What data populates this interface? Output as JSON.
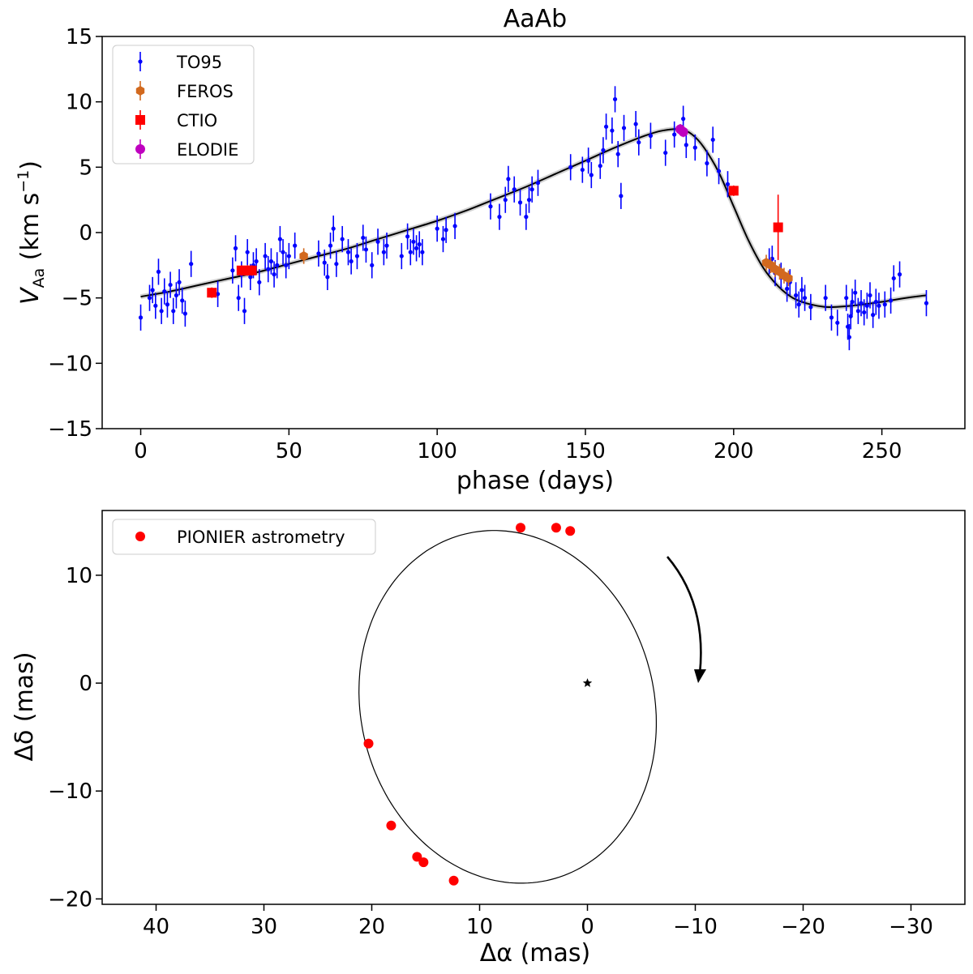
{
  "chart_data": [
    {
      "type": "scatter",
      "title": "AaAb",
      "xlabel": "phase (days)",
      "ylabel_main": "V",
      "ylabel_sub": "Aa",
      "ylabel_unit_open": " (km s",
      "ylabel_unit_sup": "−1",
      "ylabel_unit_close": ")",
      "xlim": [
        -13,
        278
      ],
      "ylim": [
        -15,
        15
      ],
      "xticks": [
        0,
        50,
        100,
        150,
        200,
        250
      ],
      "xtick_labels": [
        "0",
        "50",
        "100",
        "150",
        "200",
        "250"
      ],
      "yticks": [
        -15,
        -10,
        -5,
        0,
        5,
        10,
        15
      ],
      "ytick_labels": [
        "−15",
        "−10",
        "−5",
        "0",
        "5",
        "10",
        "15"
      ],
      "legend_position": "top-left",
      "model_curve": {
        "name": "orbit fit",
        "x": [
          0,
          10,
          20,
          30,
          40,
          50,
          60,
          70,
          80,
          90,
          100,
          110,
          120,
          130,
          140,
          150,
          160,
          170,
          176,
          182,
          186,
          190,
          195,
          200,
          205,
          210,
          215,
          220,
          226,
          232,
          240,
          250,
          258,
          265
        ],
        "y": [
          -4.9,
          -4.5,
          -4.0,
          -3.5,
          -3.0,
          -2.4,
          -1.8,
          -1.2,
          -0.5,
          0.2,
          0.9,
          1.7,
          2.6,
          3.5,
          4.5,
          5.5,
          6.5,
          7.4,
          7.8,
          7.9,
          7.5,
          6.5,
          4.6,
          2.0,
          -0.6,
          -2.7,
          -4.1,
          -5.0,
          -5.5,
          -5.7,
          -5.6,
          -5.3,
          -5.0,
          -4.8
        ]
      },
      "series": [
        {
          "name": "TO95",
          "color": "#0000ff",
          "marker": "small-dot",
          "points": [
            [
              0,
              -6.5
            ],
            [
              3,
              -5.0
            ],
            [
              4,
              -4.4
            ],
            [
              5,
              -5.6
            ],
            [
              6,
              -3.0
            ],
            [
              7,
              -6.0
            ],
            [
              8,
              -4.5
            ],
            [
              9,
              -5.5
            ],
            [
              10,
              -4.0
            ],
            [
              11,
              -6.0
            ],
            [
              12,
              -4.8
            ],
            [
              13,
              -3.8
            ],
            [
              14,
              -5.2
            ],
            [
              15,
              -6.2
            ],
            [
              17,
              -2.4
            ],
            [
              26,
              -4.7
            ],
            [
              31,
              -2.9
            ],
            [
              32,
              -1.2
            ],
            [
              33,
              -5.0
            ],
            [
              34,
              -3.2
            ],
            [
              35,
              -6.0
            ],
            [
              36,
              -1.5
            ],
            [
              37,
              -3.4
            ],
            [
              38,
              -2.5
            ],
            [
              39,
              -2.2
            ],
            [
              40,
              -3.8
            ],
            [
              42,
              -1.8
            ],
            [
              43,
              -2.8
            ],
            [
              44,
              -2.2
            ],
            [
              45,
              -3.2
            ],
            [
              46,
              -2.5
            ],
            [
              47,
              -0.5
            ],
            [
              48,
              -1.5
            ],
            [
              49,
              -2.5
            ],
            [
              50,
              -1.8
            ],
            [
              52,
              -1.0
            ],
            [
              60,
              -1.6
            ],
            [
              62,
              -2.3
            ],
            [
              63,
              -3.4
            ],
            [
              64,
              -1.0
            ],
            [
              65,
              0.3
            ],
            [
              66,
              -2.4
            ],
            [
              68,
              -0.5
            ],
            [
              70,
              -1.5
            ],
            [
              71,
              -2.2
            ],
            [
              73,
              -1.8
            ],
            [
              75,
              -0.4
            ],
            [
              76,
              -1.3
            ],
            [
              78,
              -2.5
            ],
            [
              80,
              -0.7
            ],
            [
              82,
              -1.5
            ],
            [
              83,
              -1.0
            ],
            [
              88,
              -1.8
            ],
            [
              90,
              -0.3
            ],
            [
              91,
              -1.5
            ],
            [
              92,
              -0.7
            ],
            [
              93,
              -1.2
            ],
            [
              94,
              -0.9
            ],
            [
              95,
              -1.5
            ],
            [
              100,
              0.3
            ],
            [
              102,
              -0.5
            ],
            [
              103,
              0.2
            ],
            [
              106,
              0.5
            ],
            [
              118,
              2.0
            ],
            [
              121,
              1.2
            ],
            [
              123,
              2.5
            ],
            [
              124,
              4.1
            ],
            [
              126,
              3.3
            ],
            [
              128,
              2.3
            ],
            [
              130,
              1.2
            ],
            [
              131,
              2.5
            ],
            [
              132,
              3.3
            ],
            [
              134,
              3.8
            ],
            [
              145,
              5.0
            ],
            [
              149,
              4.8
            ],
            [
              151,
              5.5
            ],
            [
              152,
              4.4
            ],
            [
              155,
              5.1
            ],
            [
              156,
              6.3
            ],
            [
              157,
              8.1
            ],
            [
              159,
              7.8
            ],
            [
              160,
              10.2
            ],
            [
              161,
              6.0
            ],
            [
              162,
              2.8
            ],
            [
              163,
              8.0
            ],
            [
              167,
              8.3
            ],
            [
              168,
              6.9
            ],
            [
              172,
              7.4
            ],
            [
              177,
              6.1
            ],
            [
              180,
              7.5
            ],
            [
              183,
              8.7
            ],
            [
              184,
              6.7
            ],
            [
              187,
              6.5
            ],
            [
              191,
              5.3
            ],
            [
              193,
              7.1
            ],
            [
              195,
              4.7
            ],
            [
              198,
              3.7
            ],
            [
              212,
              -2.2
            ],
            [
              213,
              -2.0
            ],
            [
              214,
              -3.1
            ],
            [
              216,
              -3.3
            ],
            [
              218,
              -4.3
            ],
            [
              219,
              -3.8
            ],
            [
              221,
              -4.8
            ],
            [
              222,
              -5.5
            ],
            [
              223,
              -4.4
            ],
            [
              224,
              -5.0
            ],
            [
              226,
              -5.7
            ],
            [
              231,
              -5.0
            ],
            [
              233,
              -6.5
            ],
            [
              235,
              -6.9
            ],
            [
              238,
              -5.0
            ],
            [
              238.5,
              -7.2
            ],
            [
              239,
              -8.0
            ],
            [
              239.5,
              -6.4
            ],
            [
              240,
              -5.3
            ],
            [
              241,
              -4.6
            ],
            [
              242,
              -6.0
            ],
            [
              243,
              -5.4
            ],
            [
              244,
              -6.1
            ],
            [
              245,
              -5.6
            ],
            [
              246,
              -4.8
            ],
            [
              247,
              -6.3
            ],
            [
              248,
              -5.3
            ],
            [
              249,
              -5.6
            ],
            [
              251,
              -5.5
            ],
            [
              253,
              -5.2
            ],
            [
              254,
              -3.5
            ],
            [
              256,
              -3.2
            ],
            [
              265,
              -5.4
            ]
          ]
        },
        {
          "name": "FEROS",
          "color": "#d2691e",
          "marker": "hexagon",
          "points": [
            [
              55,
              -1.8
            ],
            [
              211,
              -2.3
            ],
            [
              212.5,
              -2.5
            ],
            [
              214,
              -2.8
            ],
            [
              215.5,
              -3.0
            ],
            [
              217,
              -3.3
            ],
            [
              218.5,
              -3.5
            ]
          ]
        },
        {
          "name": "CTIO",
          "color": "#ff0000",
          "marker": "square",
          "points": [
            [
              24,
              -4.6
            ],
            [
              34,
              -2.9
            ],
            [
              36,
              -2.9
            ],
            [
              37.5,
              -2.9
            ],
            [
              200,
              3.2
            ],
            [
              215,
              0.4
            ]
          ]
        },
        {
          "name": "ELODIE",
          "color": "#bf00bf",
          "marker": "circle",
          "points": [
            [
              182,
              7.9
            ],
            [
              183,
              7.7
            ]
          ]
        }
      ]
    },
    {
      "type": "scatter",
      "title": "",
      "xlabel": "Δα (mas)",
      "ylabel": "Δδ (mas)",
      "xlim": [
        45,
        -35
      ],
      "ylim": [
        -20.5,
        16
      ],
      "xticks": [
        40,
        30,
        20,
        10,
        0,
        -10,
        -20,
        -30
      ],
      "xtick_labels": [
        "40",
        "30",
        "20",
        "10",
        "0",
        "−10",
        "−20",
        "−30"
      ],
      "yticks": [
        -20,
        -10,
        0,
        10
      ],
      "ytick_labels": [
        "−20",
        "−10",
        "0",
        "10"
      ],
      "legend_position": "top-left",
      "orbit_ellipse": {
        "center": [
          7.4,
          -2.2
        ],
        "semi_axes": [
          13.6,
          16.5
        ],
        "rotation_deg": -14
      },
      "primary_star": [
        0,
        0
      ],
      "direction_arrow": "clockwise",
      "series": [
        {
          "name": "PIONIER astrometry",
          "color": "#ff0000",
          "marker": "circle",
          "points": [
            [
              6.2,
              14.4
            ],
            [
              2.9,
              14.4
            ],
            [
              1.6,
              14.1
            ],
            [
              20.3,
              -5.6
            ],
            [
              18.2,
              -13.2
            ],
            [
              15.8,
              -16.1
            ],
            [
              15.2,
              -16.6
            ],
            [
              12.4,
              -18.3
            ]
          ]
        }
      ]
    }
  ]
}
